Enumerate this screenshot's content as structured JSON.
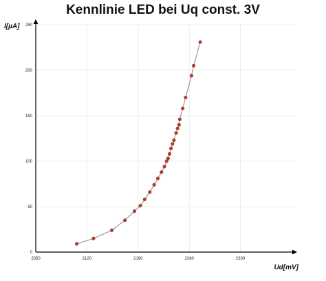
{
  "chart_data": {
    "type": "scatter",
    "title": "Kennlinie LED bei Uq const. 3V",
    "xlabel": "Ud[mV]",
    "ylabel": "I[µA]",
    "xlim": [
      2050,
      2400
    ],
    "ylim": [
      0,
      250
    ],
    "x_ticks": [
      "2050",
      "2120",
      "2190",
      "2260",
      "2330"
    ],
    "y_ticks": [
      "0",
      "50",
      "100",
      "150",
      "200",
      "250"
    ],
    "grid": true,
    "legend": "none",
    "colors": {
      "marker": "#c0392b",
      "line": "#9a9a9a",
      "grid": "#e6e6e6",
      "axis": "#000000"
    },
    "series": [
      {
        "points": [
          [
            2106,
            9
          ],
          [
            2129,
            15
          ],
          [
            2154,
            24
          ],
          [
            2172,
            35
          ],
          [
            2185,
            45
          ],
          [
            2193,
            51
          ],
          [
            2199,
            58
          ],
          [
            2206,
            66
          ],
          [
            2212,
            74
          ],
          [
            2217,
            81
          ],
          [
            2222,
            88
          ],
          [
            2226,
            94
          ],
          [
            2229,
            100
          ],
          [
            2231,
            103
          ],
          [
            2233,
            108
          ],
          [
            2235,
            114
          ],
          [
            2237,
            119
          ],
          [
            2239,
            123
          ],
          [
            2242,
            131
          ],
          [
            2244,
            136
          ],
          [
            2246,
            140
          ],
          [
            2247,
            146
          ],
          [
            2251,
            158
          ],
          [
            2255,
            170
          ],
          [
            2263,
            194
          ],
          [
            2266,
            205
          ],
          [
            2275,
            231
          ]
        ]
      }
    ]
  }
}
